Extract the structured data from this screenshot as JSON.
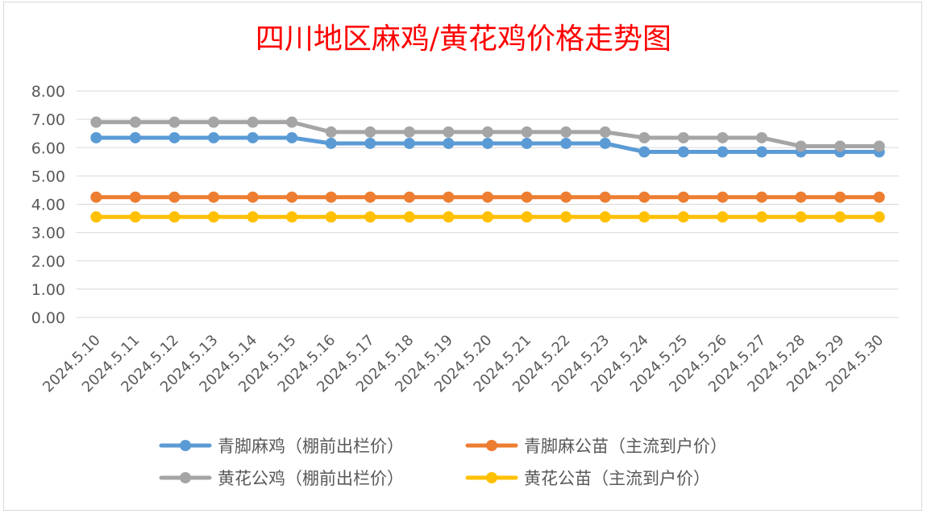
{
  "chart_data": {
    "type": "line",
    "title": "四川地区麻鸡/黄花鸡价格走势图",
    "xlabel": "",
    "ylabel": "",
    "ylim": [
      0,
      8
    ],
    "yticks": [
      "0.00",
      "1.00",
      "2.00",
      "3.00",
      "4.00",
      "5.00",
      "6.00",
      "7.00",
      "8.00"
    ],
    "grid": true,
    "legend_position": "bottom",
    "categories": [
      "2024.5.10",
      "2024.5.11",
      "2024.5.12",
      "2024.5.13",
      "2024.5.14",
      "2024.5.15",
      "2024.5.16",
      "2024.5.17",
      "2024.5.18",
      "2024.5.19",
      "2024.5.20",
      "2024.5.21",
      "2024.5.22",
      "2024.5.23",
      "2024.5.24",
      "2024.5.25",
      "2024.5.26",
      "2024.5.27",
      "2024.5.28",
      "2024.5.29",
      "2024.5.30"
    ],
    "series": [
      {
        "name": "青脚麻鸡（棚前出栏价）",
        "color": "#5b9bd5",
        "values": [
          6.35,
          6.35,
          6.35,
          6.35,
          6.35,
          6.35,
          6.15,
          6.15,
          6.15,
          6.15,
          6.15,
          6.15,
          6.15,
          6.15,
          5.85,
          5.85,
          5.85,
          5.85,
          5.85,
          5.85,
          5.85
        ]
      },
      {
        "name": "青脚麻公苗（主流到户价）",
        "color": "#ed7d31",
        "values": [
          4.25,
          4.25,
          4.25,
          4.25,
          4.25,
          4.25,
          4.25,
          4.25,
          4.25,
          4.25,
          4.25,
          4.25,
          4.25,
          4.25,
          4.25,
          4.25,
          4.25,
          4.25,
          4.25,
          4.25,
          4.25
        ]
      },
      {
        "name": "黄花公鸡（棚前出栏价）",
        "color": "#a5a5a5",
        "values": [
          6.9,
          6.9,
          6.9,
          6.9,
          6.9,
          6.9,
          6.55,
          6.55,
          6.55,
          6.55,
          6.55,
          6.55,
          6.55,
          6.55,
          6.35,
          6.35,
          6.35,
          6.35,
          6.05,
          6.05,
          6.05
        ]
      },
      {
        "name": "黄花公苗（主流到户价）",
        "color": "#ffc000",
        "values": [
          3.55,
          3.55,
          3.55,
          3.55,
          3.55,
          3.55,
          3.55,
          3.55,
          3.55,
          3.55,
          3.55,
          3.55,
          3.55,
          3.55,
          3.55,
          3.55,
          3.55,
          3.55,
          3.55,
          3.55,
          3.55
        ]
      }
    ]
  }
}
